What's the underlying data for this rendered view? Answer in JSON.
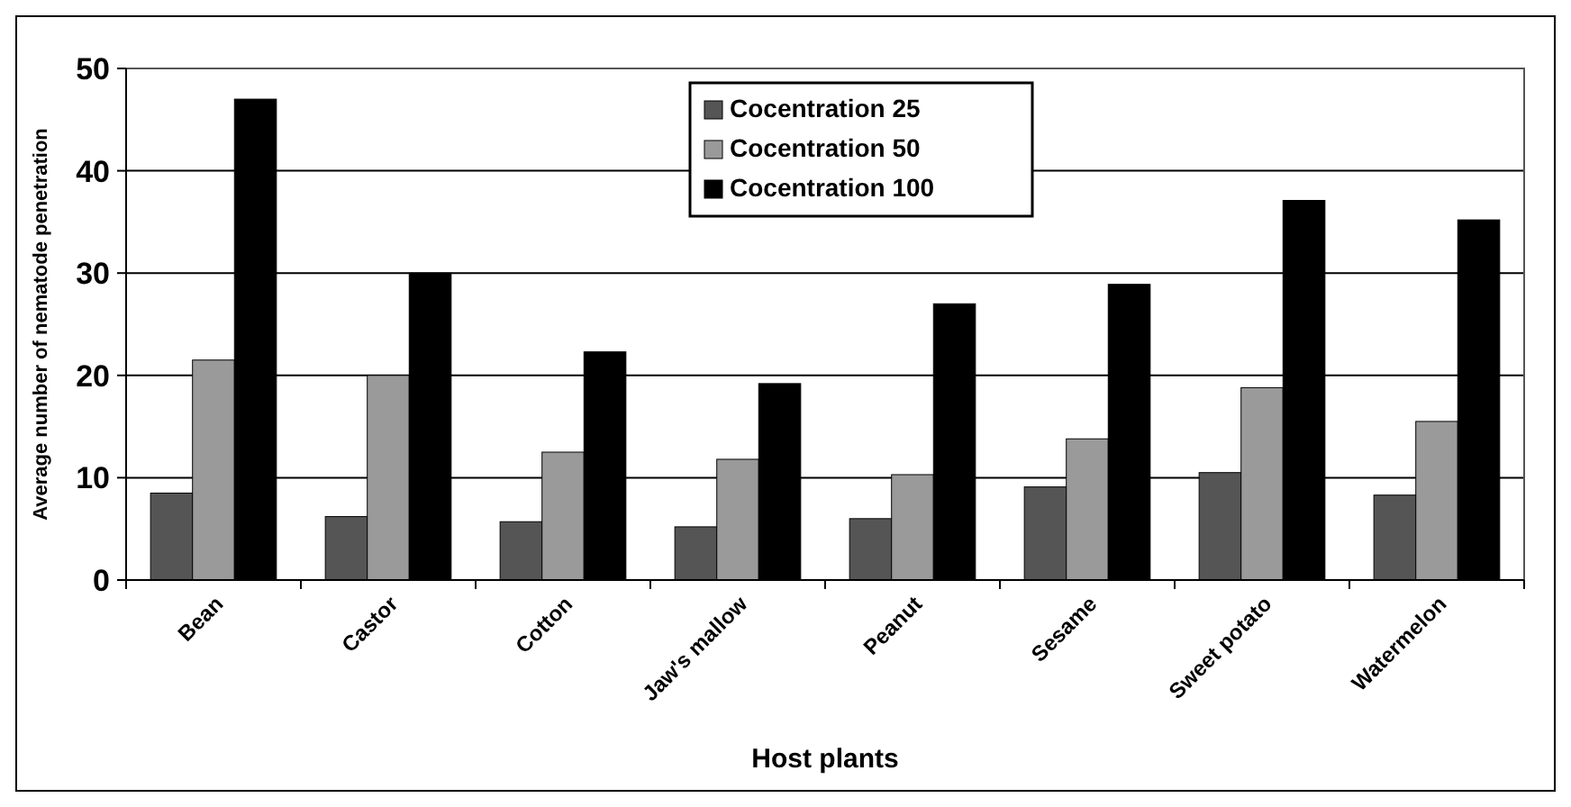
{
  "chart_data": {
    "type": "bar",
    "xlabel": "Host plants",
    "ylabel": "Average number of nematode penetration",
    "categories": [
      "Bean",
      "Castor",
      "Cotton",
      "Jaw's mallow",
      "Peanut",
      "Sesame",
      "Sweet potato",
      "Watermelon"
    ],
    "series": [
      {
        "name": "Cocentration 25",
        "color": "#555555",
        "values": [
          8.5,
          6.2,
          5.7,
          5.2,
          6,
          9.1,
          10.5,
          8.3
        ]
      },
      {
        "name": "Cocentration 50",
        "color": "#9a9a9a",
        "values": [
          21.5,
          20,
          12.5,
          11.8,
          10.3,
          13.8,
          18.8,
          15.5
        ]
      },
      {
        "name": "Cocentration 100",
        "color": "#000000",
        "values": [
          47,
          30,
          22.3,
          19.2,
          27,
          28.9,
          37.1,
          35.2
        ]
      }
    ],
    "ylim": [
      0,
      50
    ],
    "yticks": [
      0,
      10,
      20,
      30,
      40,
      50
    ],
    "grid": "y",
    "legend": "top"
  }
}
